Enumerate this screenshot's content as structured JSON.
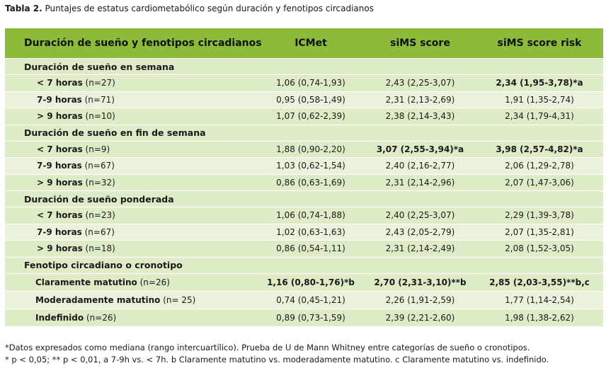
{
  "caption": {
    "label": "Tabla 2.",
    "title": " Puntajes de estatus cardiometabólico según duración y fenotipos circadianos"
  },
  "table": {
    "headers": [
      "Duración de sueño y fenotipos circadianos",
      "ICMet",
      "siMS score",
      "siMS score risk"
    ],
    "sections": [
      {
        "title": "Duración de sueño en semana",
        "rows": [
          {
            "label": "< 7 horas",
            "n": " (n=27)",
            "icmet": "1,06 (0,74-1,93)",
            "sims": "2,43 (2,25-3,07)",
            "risk": "2,34 (1,95-3,78)*a"
          },
          {
            "label": "7-9 horas",
            "n": " (n=71)",
            "icmet": "0,95 (0,58-1,49)",
            "sims": "2,31 (2,13-2,69)",
            "risk": "1,91 (1,35-2,74)"
          },
          {
            "label": "> 9 horas",
            "n": " (n=10)",
            "icmet": "1,07 (0,62-2,39)",
            "sims": "2,38 (2,14-3,43)",
            "risk": "2,34 (1,79-4,31)"
          }
        ]
      },
      {
        "title": "Duración de sueño en fin de semana",
        "rows": [
          {
            "label": "< 7 horas",
            "n": " (n=9)",
            "icmet": "1,88 (0,90-2,20)",
            "sims": "3,07 (2,55-3,94)*a",
            "risk": "3,98 (2,57-4,82)*a"
          },
          {
            "label": "7-9 horas",
            "n": " (n=67)",
            "icmet": "1,03 (0,62-1,54)",
            "sims": "2,40 (2,16-2,77)",
            "risk": "2,06 (1,29-2,78)"
          },
          {
            "label": "> 9 horas",
            "n": " (n=32)",
            "icmet": "0,86 (0,63-1,69)",
            "sims": "2,31 (2,14-2,96)",
            "risk": "2,07 (1,47-3,06)"
          }
        ]
      },
      {
        "title": "Duración de sueño ponderada",
        "rows": [
          {
            "label": "< 7 horas",
            "n": " (n=23)",
            "icmet": "1,06 (0,74-1,88)",
            "sims": "2,40 (2,25-3,07)",
            "risk": "2,29 (1,39-3,78)"
          },
          {
            "label": "7-9 horas",
            "n": " (n=67)",
            "icmet": "1,02 (0,63-1,63)",
            "sims": "2,43 (2,05-2,79)",
            "risk": "2,07 (1,35-2,81)"
          },
          {
            "label": "> 9 horas",
            "n": " (n=18)",
            "icmet": "0,86 (0,54-1,11)",
            "sims": "2,31 (2,14-2,49)",
            "risk": "2,08 (1,52-3,05)"
          }
        ]
      },
      {
        "title": "Fenotipo circadiano o cronotipo",
        "rows": [
          {
            "label": "Claramente matutino",
            "n": " (n=26)",
            "icmet": "1,16 (0,80-1,76)*b",
            "sims": "2,70 (2,31-3,10)**b",
            "risk": "2,85 (2,03-3,55)**b,c"
          },
          {
            "label": "Moderadamente matutino",
            "n": " (n= 25)",
            "icmet": "0,74 (0,45-1,21)",
            "sims": "2,26 (1,91-2,59)",
            "risk": "1,77 (1,14-2,54)"
          },
          {
            "label": "Indefinido",
            "n": " (n=26)",
            "icmet": "0,89 (0,73-1,59)",
            "sims": "2,39 (2,21-2,60)",
            "risk": "1,98 (1,38-2,62)"
          }
        ]
      }
    ]
  },
  "footnotes": [
    "*Datos expresados como mediana (rango intercuartílico). Prueba de U de Mann Whitney entre categorías de sueño o cronotipos.",
    "* p < 0,05; ** p < 0,01, a 7-9h vs. < 7h. b Claramente matutino vs. moderadamente matutino. c  Claramente matutino vs. indefinido."
  ],
  "colors": {
    "header_bg": "#8cbb3c",
    "row_dark": "#ddebc6",
    "row_light": "#eaf2dc"
  }
}
